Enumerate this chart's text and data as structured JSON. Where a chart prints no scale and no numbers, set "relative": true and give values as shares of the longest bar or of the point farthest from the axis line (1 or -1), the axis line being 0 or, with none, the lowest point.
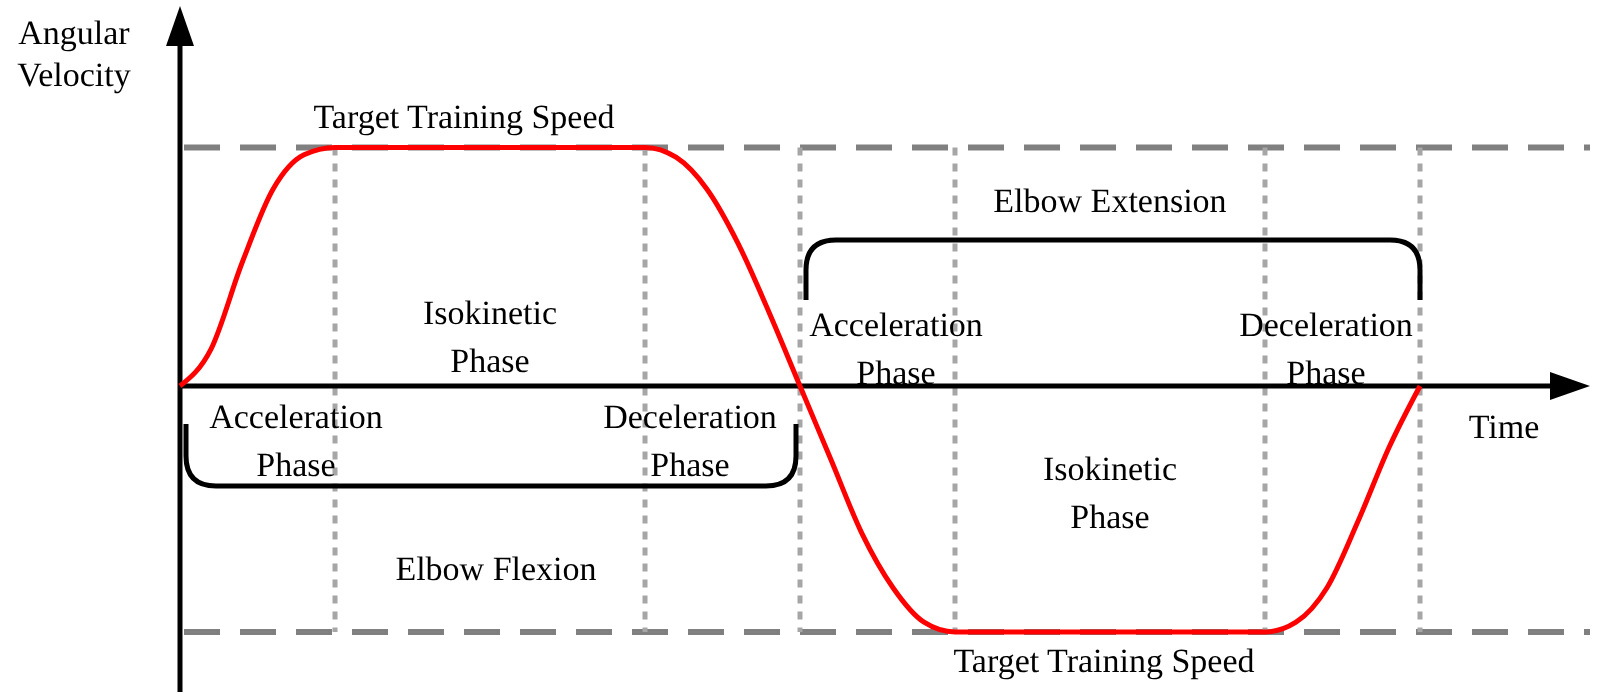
{
  "chart_data": {
    "type": "line",
    "relative": true,
    "xlabel": "Time",
    "ylabel": "Angular Velocity",
    "categories": [
      null,
      null,
      null,
      null,
      null,
      null,
      null,
      null,
      null,
      null,
      null,
      null,
      null,
      null,
      null,
      null,
      null,
      null,
      null,
      null,
      null,
      null,
      null,
      null,
      null,
      null,
      null,
      null,
      null,
      null,
      null,
      null,
      null,
      null,
      null,
      null,
      null,
      null,
      null,
      null,
      null
    ],
    "series": [
      {
        "color": "#ff0000",
        "values": [
          0,
          0.15,
          0.5,
          0.8,
          0.94,
          0.97,
          0.97,
          0.97,
          0.97,
          0.97,
          0.97,
          0.97,
          0.97,
          0.97,
          0.97,
          0.97,
          0.93,
          0.8,
          0.58,
          0.3,
          0,
          -0.3,
          -0.6,
          -0.82,
          -0.96,
          -1,
          -1,
          -1,
          -1,
          -1,
          -1,
          -1,
          -1,
          -1,
          -1,
          -1,
          -0.96,
          -0.82,
          -0.55,
          -0.25,
          0
        ]
      }
    ],
    "ref_lines": [
      {
        "axis": "y",
        "value": 0.97,
        "label": "Target Training Speed",
        "color": "#808080",
        "line_style": "dashed"
      },
      {
        "axis": "y",
        "value": -1,
        "label": "Target Training Speed",
        "color": "#808080",
        "line_style": "dashed"
      }
    ],
    "annotations": [
      "Isokinetic Phase",
      "Acceleration Phase",
      "Deceleration Phase",
      "Elbow Flexion",
      "Elbow Extension",
      "Acceleration Phase",
      "Isokinetic Phase",
      "Deceleration Phase"
    ],
    "line_style": "solid",
    "grid": "x"
  }
}
